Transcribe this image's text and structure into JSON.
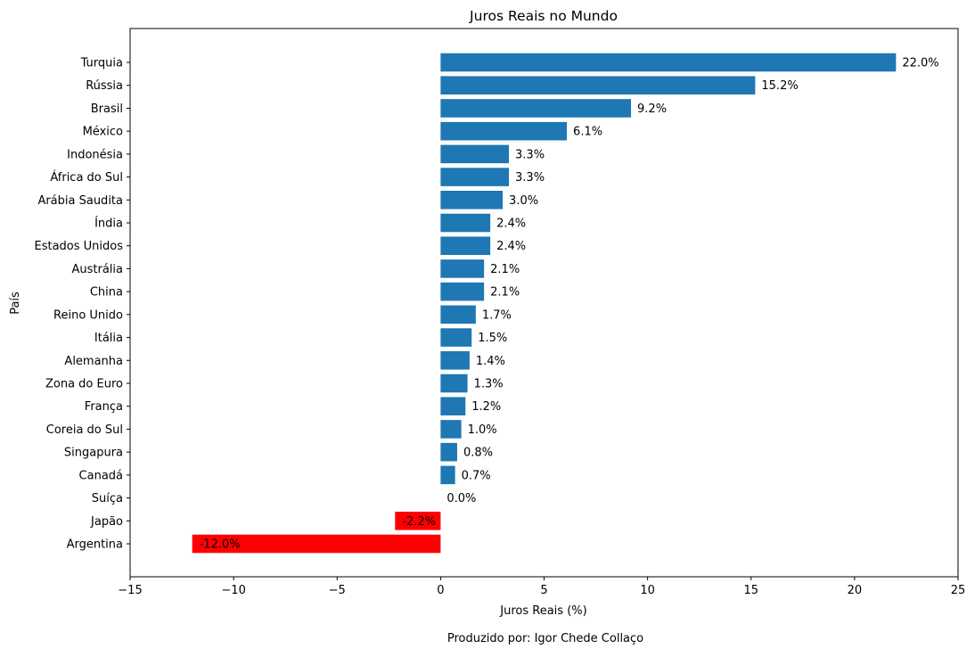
{
  "chart_data": {
    "type": "bar",
    "orientation": "horizontal",
    "title": "Juros Reais no Mundo",
    "xlabel": "Juros Reais (%)",
    "ylabel": "País",
    "xlim": [
      -15,
      25
    ],
    "xticks": [
      -15,
      -10,
      -5,
      0,
      5,
      10,
      15,
      20,
      25
    ],
    "xtick_labels": [
      "−15",
      "−10",
      "−5",
      "0",
      "5",
      "10",
      "15",
      "20",
      "25"
    ],
    "grid": false,
    "legend": "none",
    "categories": [
      "Turquia",
      "Rússia",
      "Brasil",
      "México",
      "Indonésia",
      "África do Sul",
      "Arábia Saudita",
      "Índia",
      "Estados Unidos",
      "Austrália",
      "China",
      "Reino Unido",
      "Itália",
      "Alemanha",
      "Zona do Euro",
      "França",
      "Coreia do Sul",
      "Singapura",
      "Canadá",
      "Suíça",
      "Japão",
      "Argentina"
    ],
    "values": [
      22.0,
      15.2,
      9.2,
      6.1,
      3.3,
      3.3,
      3.0,
      2.4,
      2.4,
      2.1,
      2.1,
      1.7,
      1.5,
      1.4,
      1.3,
      1.2,
      1.0,
      0.8,
      0.7,
      0.0,
      -2.2,
      -12.0
    ],
    "data_labels": [
      "22.0%",
      "15.2%",
      "9.2%",
      "6.1%",
      "3.3%",
      "3.3%",
      "3.0%",
      "2.4%",
      "2.4%",
      "2.1%",
      "2.1%",
      "1.7%",
      "1.5%",
      "1.4%",
      "1.3%",
      "1.2%",
      "1.0%",
      "0.8%",
      "0.7%",
      "0.0%",
      "-2.2%",
      "-12.0%"
    ],
    "colors": {
      "positive": "#1f77b4",
      "negative": "#ff0000"
    }
  },
  "footer": {
    "credit": "Produzido por: Igor Chede Collaço"
  }
}
